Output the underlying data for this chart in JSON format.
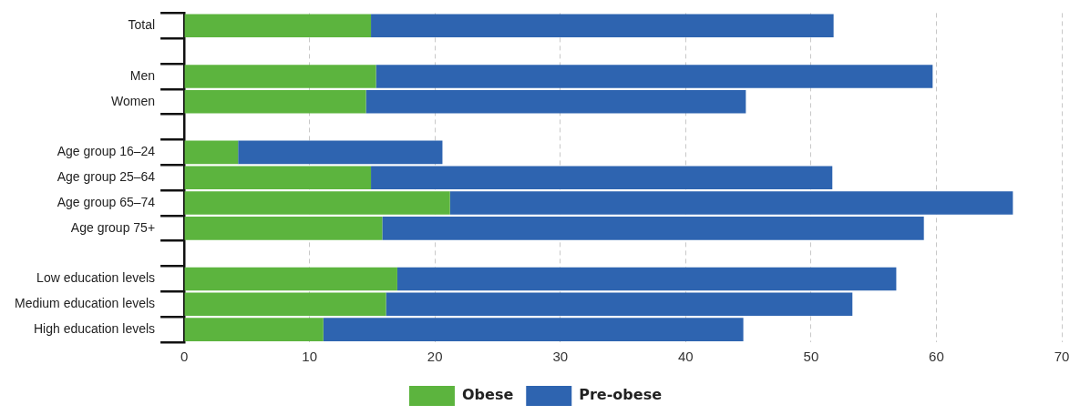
{
  "chart_data": {
    "type": "bar",
    "orientation": "horizontal",
    "stacked": true,
    "categories": [
      "Total",
      null,
      "Men",
      "Women",
      null,
      "Age group 16–24",
      "Age group 25–64",
      "Age group 65–74",
      "Age group 75+",
      null,
      "Low education levels",
      "Medium education levels",
      "High education levels"
    ],
    "series": [
      {
        "name": "Obese",
        "color": "#5cb43e",
        "values": [
          14.9,
          null,
          15.3,
          14.5,
          null,
          4.3,
          14.9,
          21.2,
          15.8,
          null,
          17.0,
          16.1,
          11.1
        ]
      },
      {
        "name": "Pre-obese",
        "color": "#2e64b0",
        "values": [
          36.9,
          null,
          44.4,
          30.3,
          null,
          16.3,
          36.8,
          44.9,
          43.2,
          null,
          39.8,
          37.2,
          33.5
        ]
      }
    ],
    "xlim": [
      0,
      70
    ],
    "xticks": [
      0,
      10,
      20,
      30,
      40,
      50,
      60,
      70
    ],
    "grid": "x",
    "legend": "bottom"
  }
}
